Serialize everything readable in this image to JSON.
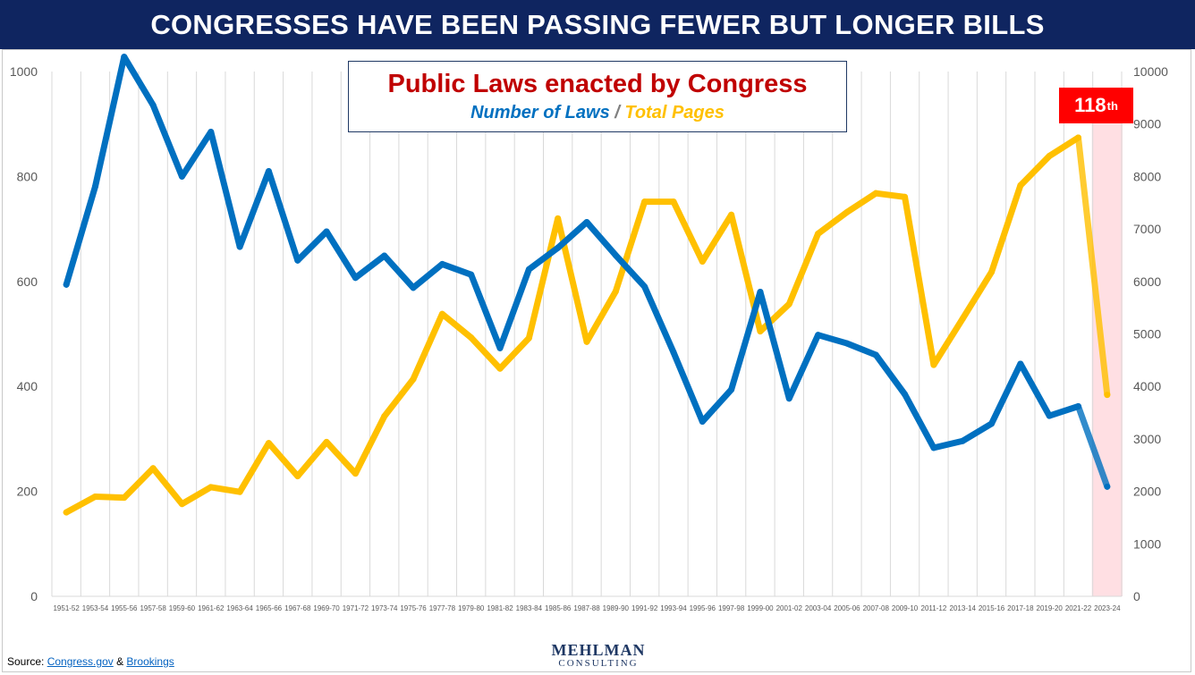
{
  "banner": {
    "title": "CONGRESSES HAVE BEEN PASSING FEWER BUT LONGER BILLS"
  },
  "chart_title": {
    "main": "Public Laws enacted by Congress",
    "sub_laws": "Number of Laws",
    "sub_sep": " / ",
    "sub_pages": "Total Pages"
  },
  "highlight": {
    "label": "118",
    "suffix": "th"
  },
  "source": {
    "prefix": "Source: ",
    "link1": "Congress.gov",
    "amp": " & ",
    "link2": "Brookings"
  },
  "logo": {
    "top": "MEHLMAN",
    "bottom": "CONSULTING"
  },
  "colors": {
    "laws": "#0070c0",
    "pages": "#ffc000",
    "banner": "#0f2560",
    "highlight": "#ffdfe3",
    "badge": "#ff0000"
  },
  "chart_data": {
    "type": "line",
    "categories": [
      "1951-52",
      "1953-54",
      "1955-56",
      "1957-58",
      "1959-60",
      "1961-62",
      "1963-64",
      "1965-66",
      "1967-68",
      "1969-70",
      "1971-72",
      "1973-74",
      "1975-76",
      "1977-78",
      "1979-80",
      "1981-82",
      "1983-84",
      "1985-86",
      "1987-88",
      "1989-90",
      "1991-92",
      "1993-94",
      "1995-96",
      "1997-98",
      "1999-00",
      "2001-02",
      "2003-04",
      "2005-06",
      "2007-08",
      "2009-10",
      "2011-12",
      "2013-14",
      "2015-16",
      "2017-18",
      "2019-20",
      "2021-22",
      "2023-24"
    ],
    "series": [
      {
        "name": "Number of Laws",
        "axis": "left",
        "color": "#0070c0",
        "values": [
          594,
          781,
          1028,
          936,
          800,
          885,
          666,
          810,
          640,
          695,
          607,
          649,
          588,
          633,
          613,
          473,
          623,
          664,
          713,
          650,
          590,
          465,
          333,
          394,
          580,
          377,
          498,
          482,
          460,
          385,
          283,
          296,
          329,
          443,
          344,
          362,
          209
        ]
      },
      {
        "name": "Total Pages",
        "axis": "right",
        "color": "#ffc000",
        "values": [
          1600,
          1900,
          1880,
          2440,
          1760,
          2080,
          1990,
          2920,
          2290,
          2940,
          2340,
          3430,
          4140,
          5380,
          4930,
          4340,
          4920,
          7200,
          4850,
          5810,
          7520,
          7520,
          6380,
          7270,
          5050,
          5570,
          6910,
          7320,
          7680,
          7610,
          4410,
          5290,
          6180,
          7830,
          8390,
          8740,
          3840
        ]
      }
    ],
    "y_left": {
      "min": 0,
      "max": 1000,
      "ticks": [
        0,
        200,
        400,
        600,
        800,
        1000
      ]
    },
    "y_right": {
      "min": 0,
      "max": 10000,
      "ticks": [
        0,
        1000,
        2000,
        3000,
        4000,
        5000,
        6000,
        7000,
        8000,
        9000,
        10000
      ]
    },
    "highlight_category": "2023-24",
    "grid": "vertical"
  }
}
